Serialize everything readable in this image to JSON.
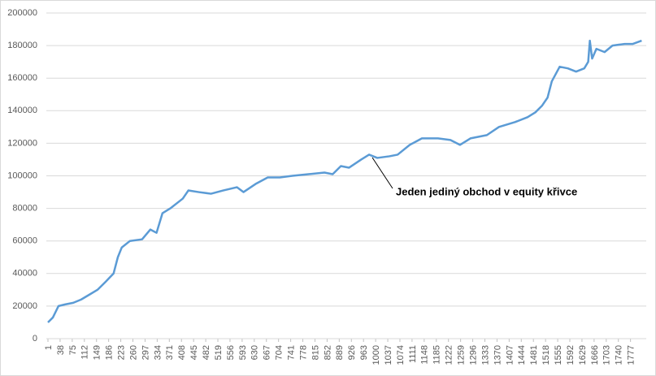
{
  "chart_data": {
    "type": "line",
    "annotation": "Jeden jediný obchod v equity křivce",
    "x": [
      1,
      16,
      33,
      53,
      78,
      102,
      127,
      152,
      177,
      201,
      214,
      226,
      251,
      288,
      313,
      332,
      350,
      374,
      412,
      429,
      461,
      498,
      535,
      577,
      597,
      634,
      671,
      708,
      746,
      795,
      844,
      869,
      894,
      919,
      956,
      980,
      1005,
      1042,
      1067,
      1104,
      1141,
      1190,
      1228,
      1257,
      1289,
      1339,
      1376,
      1425,
      1463,
      1487,
      1507,
      1524,
      1537,
      1561,
      1586,
      1611,
      1636,
      1648,
      1653,
      1660,
      1673,
      1698,
      1722,
      1759,
      1784,
      1811
    ],
    "series": [
      {
        "color": "#5b9bd5",
        "values": [
          10000,
          13000,
          20000,
          21000,
          22000,
          24000,
          27000,
          30000,
          35000,
          40000,
          50000,
          56000,
          60000,
          61000,
          67000,
          65000,
          77000,
          80000,
          86000,
          91000,
          90000,
          89000,
          91000,
          93000,
          90000,
          95000,
          99000,
          99000,
          100000,
          101000,
          102000,
          101000,
          106000,
          105000,
          110000,
          113000,
          111000,
          112000,
          113000,
          119000,
          123000,
          123000,
          122000,
          119000,
          123000,
          125000,
          130000,
          133000,
          136000,
          139000,
          143000,
          148000,
          158000,
          167000,
          166000,
          164000,
          166000,
          170000,
          183000,
          172000,
          178000,
          176000,
          180000,
          181000,
          181000,
          183000
        ]
      }
    ],
    "xlim": [
      1,
      1820
    ],
    "xticks": [
      1,
      38,
      75,
      112,
      149,
      186,
      223,
      260,
      297,
      334,
      371,
      408,
      445,
      482,
      519,
      556,
      593,
      630,
      667,
      704,
      741,
      778,
      815,
      852,
      889,
      926,
      963,
      1000,
      1037,
      1074,
      1111,
      1148,
      1185,
      1222,
      1259,
      1296,
      1333,
      1370,
      1407,
      1444,
      1481,
      1518,
      1555,
      1592,
      1629,
      1666,
      1703,
      1740,
      1777
    ],
    "ylim": [
      0,
      200000
    ],
    "yticks": [
      0,
      20000,
      40000,
      60000,
      80000,
      100000,
      120000,
      140000,
      160000,
      180000,
      200000
    ],
    "grid": true
  }
}
